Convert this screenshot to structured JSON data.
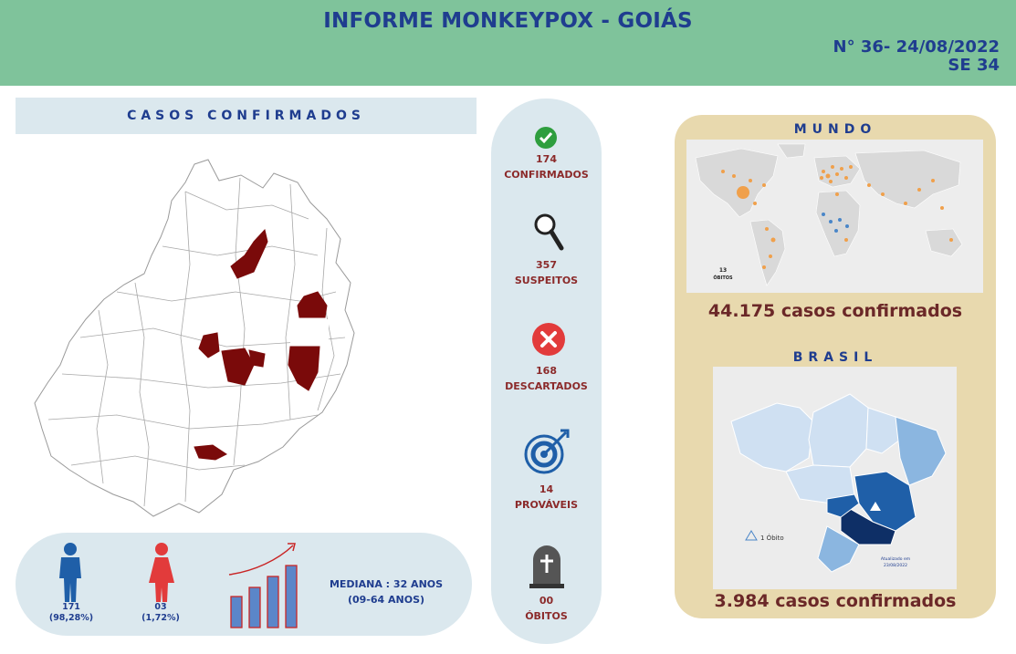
{
  "header": {
    "title": "INFORME MONKEYPOX - GOIÁS",
    "edition_line1": "N° 36- 24/08/2022",
    "edition_line2": "SE 34"
  },
  "casos": {
    "title": "CASOS CONFIRMADOS"
  },
  "demographics": {
    "male_count": "171",
    "male_pct": "(98,28%)",
    "female_count": "03",
    "female_pct": "(1,72%)",
    "median_line1": "MEDIANA : 32 ANOS",
    "median_line2": "(09-64 ANOS)"
  },
  "stats": [
    {
      "value": "174",
      "label": "CONFIRMADOS",
      "icon": "check-icon",
      "color": "#2e9e3e"
    },
    {
      "value": "357",
      "label": "SUSPEITOS",
      "icon": "magnifier-icon",
      "color": "#222222"
    },
    {
      "value": "168",
      "label": "DESCARTADOS",
      "icon": "x-icon",
      "color": "#e23b3b"
    },
    {
      "value": "14",
      "label": "PROVÁVEIS",
      "icon": "target-icon",
      "color": "#1f5fa8"
    },
    {
      "value": "00",
      "label": "ÓBITOS",
      "icon": "tombstone-icon",
      "color": "#555555"
    }
  ],
  "world": {
    "title": "MUNDO",
    "deaths_count": "13",
    "deaths_label": "ÓBITOS",
    "count": "44.175 casos confirmados"
  },
  "brasil": {
    "title": "BRASIL",
    "legend": "1 Óbito",
    "updated_line1": "Atualizado em",
    "updated_line2": "23/08/2022",
    "count": "3.984   casos confirmados"
  },
  "colors": {
    "header": "#7fc39b",
    "title": "#1f3d8f",
    "highlight": "#7a0a0a",
    "panel": "#dbe8ee",
    "world_panel": "#e8d9ae"
  }
}
